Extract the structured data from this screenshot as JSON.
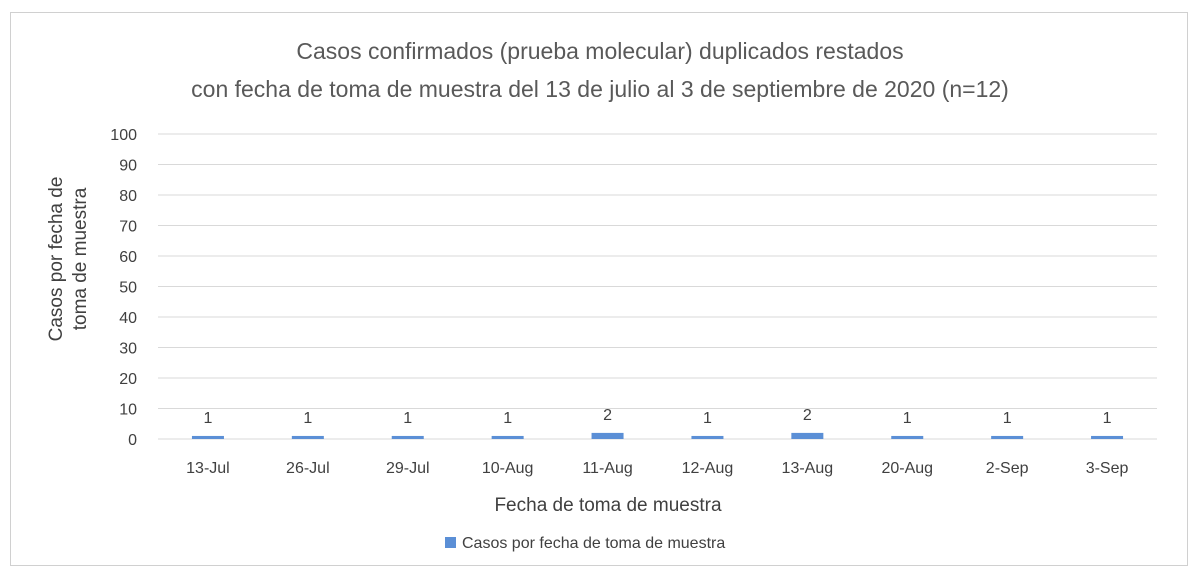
{
  "chart_data": {
    "type": "bar",
    "title": [
      "Casos confirmados (prueba molecular) duplicados restados",
      "con fecha de toma de muestra del 13 de julio al 3 de septiembre de 2020 (n=12)"
    ],
    "categories": [
      "13-Jul",
      "26-Jul",
      "29-Jul",
      "10-Aug",
      "11-Aug",
      "12-Aug",
      "13-Aug",
      "20-Aug",
      "2-Sep",
      "3-Sep"
    ],
    "series": [
      {
        "name": "Casos por fecha de toma de muestra",
        "values": [
          1,
          1,
          1,
          1,
          2,
          1,
          2,
          1,
          1,
          1
        ],
        "color": "#5b8fd6"
      }
    ],
    "xlabel": "Fecha de toma de muestra",
    "ylabel": [
      "Casos por fecha de",
      "toma de muestra"
    ],
    "ylim": [
      0,
      100
    ],
    "yticks": [
      0,
      10,
      20,
      30,
      40,
      50,
      60,
      70,
      80,
      90,
      100
    ],
    "grid": true,
    "data_labels": true,
    "legend_position": "bottom"
  }
}
